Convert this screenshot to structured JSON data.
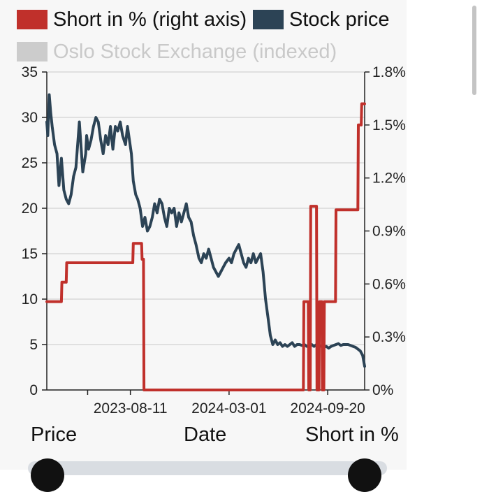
{
  "legend": {
    "short": {
      "label": "Short in % (right axis)",
      "color": "#c0302b"
    },
    "price": {
      "label": "Stock price",
      "color": "#2c4355"
    },
    "index": {
      "label": "Oslo Stock Exchange (indexed)",
      "color": "#cccccc"
    }
  },
  "bottom_labels": {
    "left": "Price",
    "center": "Date",
    "right": "Short in %"
  },
  "chart_data": {
    "type": "line",
    "title": "",
    "left_axis": {
      "label": "Price",
      "min": 0,
      "max": 35,
      "ticks": [
        0,
        5,
        10,
        15,
        20,
        25,
        30,
        35
      ]
    },
    "right_axis": {
      "label": "Short in %",
      "min": 0,
      "max": 1.8,
      "ticks": [
        0,
        0.3,
        0.6,
        0.9,
        1.2,
        1.5,
        1.8
      ],
      "tick_labels": [
        "0%",
        "0.3%",
        "0.6%",
        "0.9%",
        "1.2%",
        "1.5%",
        "1.8%"
      ]
    },
    "x_axis": {
      "label": "Date",
      "start": "2023-02-20",
      "end": "2024-12-05",
      "ticks": [
        "2023-05-15",
        "2023-08-11",
        "2024-03-01",
        "2024-09-20"
      ],
      "tick_labels": [
        "",
        "2023-08-11",
        "2024-03-01",
        "2024-09-20"
      ]
    },
    "grid": true,
    "series": [
      {
        "name": "Stock price",
        "axis": "left",
        "color": "#2c4355",
        "x": [
          "2023-02-20",
          "2023-02-22",
          "2023-02-25",
          "2023-02-28",
          "2023-03-03",
          "2023-03-08",
          "2023-03-13",
          "2023-03-17",
          "2023-03-22",
          "2023-03-27",
          "2023-04-01",
          "2023-04-06",
          "2023-04-11",
          "2023-04-16",
          "2023-04-21",
          "2023-04-28",
          "2023-05-05",
          "2023-05-11",
          "2023-05-13",
          "2023-05-17",
          "2023-05-22",
          "2023-05-27",
          "2023-06-01",
          "2023-06-06",
          "2023-06-11",
          "2023-06-16",
          "2023-06-21",
          "2023-06-26",
          "2023-07-01",
          "2023-07-06",
          "2023-07-11",
          "2023-07-16",
          "2023-07-21",
          "2023-07-26",
          "2023-08-01",
          "2023-08-05",
          "2023-08-09",
          "2023-08-13",
          "2023-08-17",
          "2023-08-22",
          "2023-08-26",
          "2023-08-31",
          "2023-09-05",
          "2023-09-10",
          "2023-09-15",
          "2023-09-20",
          "2023-09-25",
          "2023-09-30",
          "2023-10-05",
          "2023-10-10",
          "2023-10-15",
          "2023-10-20",
          "2023-10-25",
          "2023-10-30",
          "2023-11-04",
          "2023-11-09",
          "2023-11-14",
          "2023-11-19",
          "2023-11-24",
          "2023-11-29",
          "2023-12-04",
          "2023-12-09",
          "2023-12-14",
          "2023-12-19",
          "2023-12-24",
          "2023-12-30",
          "2024-01-04",
          "2024-01-09",
          "2024-01-14",
          "2024-01-19",
          "2024-01-24",
          "2024-01-29",
          "2024-02-03",
          "2024-02-08",
          "2024-02-13",
          "2024-02-18",
          "2024-02-23",
          "2024-03-01",
          "2024-03-06",
          "2024-03-11",
          "2024-03-16",
          "2024-03-21",
          "2024-03-26",
          "2024-03-31",
          "2024-04-05",
          "2024-04-10",
          "2024-04-15",
          "2024-04-20",
          "2024-04-25",
          "2024-04-30",
          "2024-05-05",
          "2024-05-10",
          "2024-05-15",
          "2024-05-20",
          "2024-05-25",
          "2024-05-30",
          "2024-06-04",
          "2024-06-09",
          "2024-06-14",
          "2024-06-19",
          "2024-06-24",
          "2024-06-29",
          "2024-07-04",
          "2024-07-09",
          "2024-07-14",
          "2024-07-19",
          "2024-07-24",
          "2024-07-29",
          "2024-08-03",
          "2024-08-08",
          "2024-08-13",
          "2024-08-18",
          "2024-08-23",
          "2024-08-28",
          "2024-09-02",
          "2024-09-07",
          "2024-09-12",
          "2024-09-17",
          "2024-09-22",
          "2024-09-27",
          "2024-10-02",
          "2024-10-07",
          "2024-10-12",
          "2024-10-17",
          "2024-10-22",
          "2024-10-27",
          "2024-11-01",
          "2024-11-06",
          "2024-11-11",
          "2024-11-16",
          "2024-11-21",
          "2024-11-26",
          "2024-12-01",
          "2024-12-05"
        ],
        "values": [
          29.5,
          28.0,
          32.5,
          30.5,
          29.0,
          27.0,
          26.0,
          22.5,
          25.5,
          22.0,
          21.0,
          20.5,
          21.5,
          23.5,
          24.5,
          29.5,
          24.0,
          26.0,
          28.0,
          26.5,
          27.5,
          29.0,
          30.0,
          29.5,
          27.5,
          26.0,
          28.0,
          27.0,
          29.0,
          26.5,
          29.0,
          28.5,
          29.5,
          28.0,
          27.0,
          29.0,
          27.5,
          26.0,
          23.0,
          21.5,
          21.0,
          20.0,
          18.0,
          19.0,
          17.5,
          18.0,
          19.0,
          20.5,
          19.5,
          21.0,
          20.5,
          19.0,
          18.0,
          20.0,
          19.5,
          20.0,
          18.0,
          19.5,
          18.5,
          19.5,
          20.5,
          19.0,
          18.5,
          17.0,
          16.0,
          14.5,
          14.0,
          15.0,
          14.5,
          15.5,
          14.5,
          13.5,
          13.0,
          12.5,
          13.0,
          13.5,
          14.0,
          14.5,
          14.0,
          15.0,
          15.5,
          16.0,
          15.0,
          14.0,
          13.5,
          14.5,
          14.0,
          15.0,
          14.0,
          14.5,
          15.0,
          13.0,
          10.0,
          8.0,
          6.0,
          5.0,
          5.5,
          5.0,
          5.2,
          4.8,
          5.0,
          4.8,
          5.0,
          5.2,
          4.8,
          5.0,
          5.0,
          4.9,
          5.0,
          4.8,
          4.9,
          5.0,
          4.8,
          5.0,
          4.9,
          4.8,
          4.7,
          4.8,
          4.6,
          4.8,
          4.9,
          5.0,
          5.1,
          4.9,
          5.0,
          5.0,
          5.0,
          4.9,
          4.8,
          4.7,
          4.5,
          4.3,
          3.8,
          2.6
        ]
      },
      {
        "name": "Short in %",
        "axis": "right",
        "color": "#c0302b",
        "x": [
          "2023-02-20",
          "2023-03-22",
          "2023-03-23",
          "2023-04-01",
          "2023-04-02",
          "2023-08-16",
          "2023-08-17",
          "2023-09-03",
          "2023-09-04",
          "2023-09-07",
          "2023-09-08",
          "2024-08-01",
          "2024-08-02",
          "2024-08-11",
          "2024-08-12",
          "2024-08-15",
          "2024-08-16",
          "2024-08-28",
          "2024-08-29",
          "2024-09-02",
          "2024-09-03",
          "2024-09-08",
          "2024-09-09",
          "2024-09-12",
          "2024-09-13",
          "2024-10-06",
          "2024-10-07",
          "2024-11-21",
          "2024-11-22",
          "2024-11-28",
          "2024-11-29",
          "2024-12-05"
        ],
        "values": [
          0.5,
          0.5,
          0.61,
          0.61,
          0.72,
          0.72,
          0.83,
          0.83,
          0.74,
          0.74,
          0,
          0,
          0.5,
          0.5,
          0,
          0,
          1.04,
          1.04,
          0,
          0,
          0.5,
          0.5,
          0,
          0,
          0.5,
          0.5,
          1.02,
          1.02,
          1.5,
          1.5,
          1.62,
          1.62
        ]
      },
      {
        "name": "Oslo Stock Exchange (indexed)",
        "axis": "left",
        "color": "#cccccc",
        "hidden": true,
        "x": [],
        "values": []
      }
    ]
  }
}
